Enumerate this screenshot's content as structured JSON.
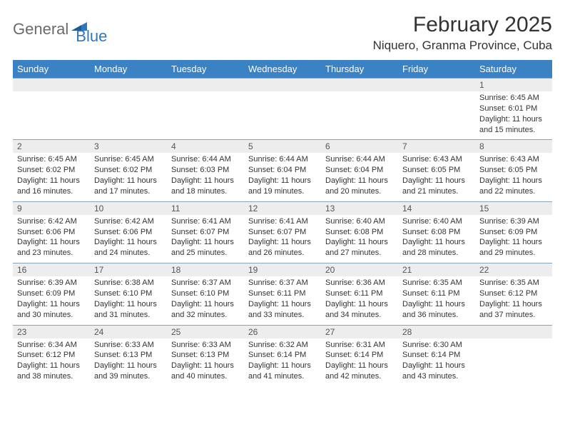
{
  "logo": {
    "word1": "General",
    "word2": "Blue",
    "word1_color": "#6b6b6b",
    "word2_color": "#2f78bd"
  },
  "title": "February 2025",
  "location": "Niquero, Granma Province, Cuba",
  "header_bg": "#3b82c4",
  "header_fg": "#ffffff",
  "daynum_bg": "#ededed",
  "border_color": "#8aa4b8",
  "day_headers": [
    "Sunday",
    "Monday",
    "Tuesday",
    "Wednesday",
    "Thursday",
    "Friday",
    "Saturday"
  ],
  "weeks": [
    [
      null,
      null,
      null,
      null,
      null,
      null,
      {
        "n": "1",
        "sr": "6:45 AM",
        "ss": "6:01 PM",
        "dl": "11 hours and 15 minutes."
      }
    ],
    [
      {
        "n": "2",
        "sr": "6:45 AM",
        "ss": "6:02 PM",
        "dl": "11 hours and 16 minutes."
      },
      {
        "n": "3",
        "sr": "6:45 AM",
        "ss": "6:02 PM",
        "dl": "11 hours and 17 minutes."
      },
      {
        "n": "4",
        "sr": "6:44 AM",
        "ss": "6:03 PM",
        "dl": "11 hours and 18 minutes."
      },
      {
        "n": "5",
        "sr": "6:44 AM",
        "ss": "6:04 PM",
        "dl": "11 hours and 19 minutes."
      },
      {
        "n": "6",
        "sr": "6:44 AM",
        "ss": "6:04 PM",
        "dl": "11 hours and 20 minutes."
      },
      {
        "n": "7",
        "sr": "6:43 AM",
        "ss": "6:05 PM",
        "dl": "11 hours and 21 minutes."
      },
      {
        "n": "8",
        "sr": "6:43 AM",
        "ss": "6:05 PM",
        "dl": "11 hours and 22 minutes."
      }
    ],
    [
      {
        "n": "9",
        "sr": "6:42 AM",
        "ss": "6:06 PM",
        "dl": "11 hours and 23 minutes."
      },
      {
        "n": "10",
        "sr": "6:42 AM",
        "ss": "6:06 PM",
        "dl": "11 hours and 24 minutes."
      },
      {
        "n": "11",
        "sr": "6:41 AM",
        "ss": "6:07 PM",
        "dl": "11 hours and 25 minutes."
      },
      {
        "n": "12",
        "sr": "6:41 AM",
        "ss": "6:07 PM",
        "dl": "11 hours and 26 minutes."
      },
      {
        "n": "13",
        "sr": "6:40 AM",
        "ss": "6:08 PM",
        "dl": "11 hours and 27 minutes."
      },
      {
        "n": "14",
        "sr": "6:40 AM",
        "ss": "6:08 PM",
        "dl": "11 hours and 28 minutes."
      },
      {
        "n": "15",
        "sr": "6:39 AM",
        "ss": "6:09 PM",
        "dl": "11 hours and 29 minutes."
      }
    ],
    [
      {
        "n": "16",
        "sr": "6:39 AM",
        "ss": "6:09 PM",
        "dl": "11 hours and 30 minutes."
      },
      {
        "n": "17",
        "sr": "6:38 AM",
        "ss": "6:10 PM",
        "dl": "11 hours and 31 minutes."
      },
      {
        "n": "18",
        "sr": "6:37 AM",
        "ss": "6:10 PM",
        "dl": "11 hours and 32 minutes."
      },
      {
        "n": "19",
        "sr": "6:37 AM",
        "ss": "6:11 PM",
        "dl": "11 hours and 33 minutes."
      },
      {
        "n": "20",
        "sr": "6:36 AM",
        "ss": "6:11 PM",
        "dl": "11 hours and 34 minutes."
      },
      {
        "n": "21",
        "sr": "6:35 AM",
        "ss": "6:11 PM",
        "dl": "11 hours and 36 minutes."
      },
      {
        "n": "22",
        "sr": "6:35 AM",
        "ss": "6:12 PM",
        "dl": "11 hours and 37 minutes."
      }
    ],
    [
      {
        "n": "23",
        "sr": "6:34 AM",
        "ss": "6:12 PM",
        "dl": "11 hours and 38 minutes."
      },
      {
        "n": "24",
        "sr": "6:33 AM",
        "ss": "6:13 PM",
        "dl": "11 hours and 39 minutes."
      },
      {
        "n": "25",
        "sr": "6:33 AM",
        "ss": "6:13 PM",
        "dl": "11 hours and 40 minutes."
      },
      {
        "n": "26",
        "sr": "6:32 AM",
        "ss": "6:14 PM",
        "dl": "11 hours and 41 minutes."
      },
      {
        "n": "27",
        "sr": "6:31 AM",
        "ss": "6:14 PM",
        "dl": "11 hours and 42 minutes."
      },
      {
        "n": "28",
        "sr": "6:30 AM",
        "ss": "6:14 PM",
        "dl": "11 hours and 43 minutes."
      },
      null
    ]
  ],
  "labels": {
    "sunrise": "Sunrise:",
    "sunset": "Sunset:",
    "daylight": "Daylight:"
  }
}
